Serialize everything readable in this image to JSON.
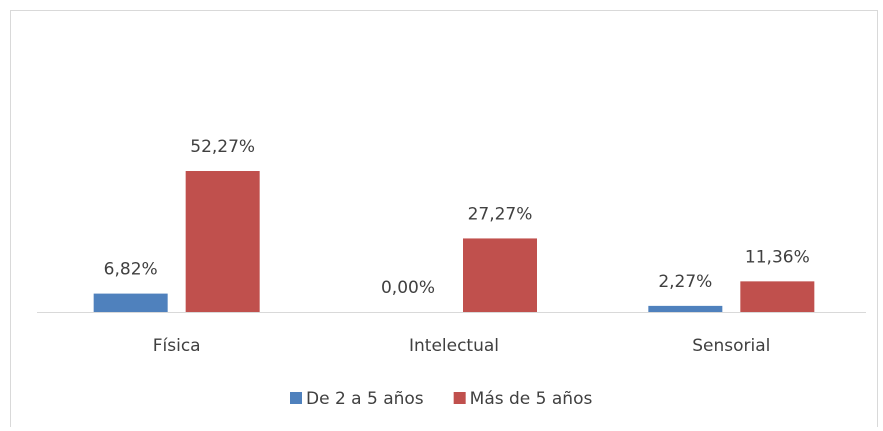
{
  "chart_data": {
    "type": "bar",
    "categories": [
      "Física",
      "Intelectual",
      "Sensorial"
    ],
    "series": [
      {
        "name": "De 2 a 5 años",
        "color": "#4f81bd",
        "values": [
          6.82,
          0,
          2.27
        ],
        "value_labels": [
          "6,82%",
          "0,00%",
          "2,27%"
        ]
      },
      {
        "name": "Más de 5 años",
        "color": "#c0504d",
        "values": [
          52.27,
          27.27,
          11.36
        ],
        "value_labels": [
          "52,27%",
          "27,27%",
          "11,36%"
        ]
      }
    ],
    "legend": "bottom"
  }
}
